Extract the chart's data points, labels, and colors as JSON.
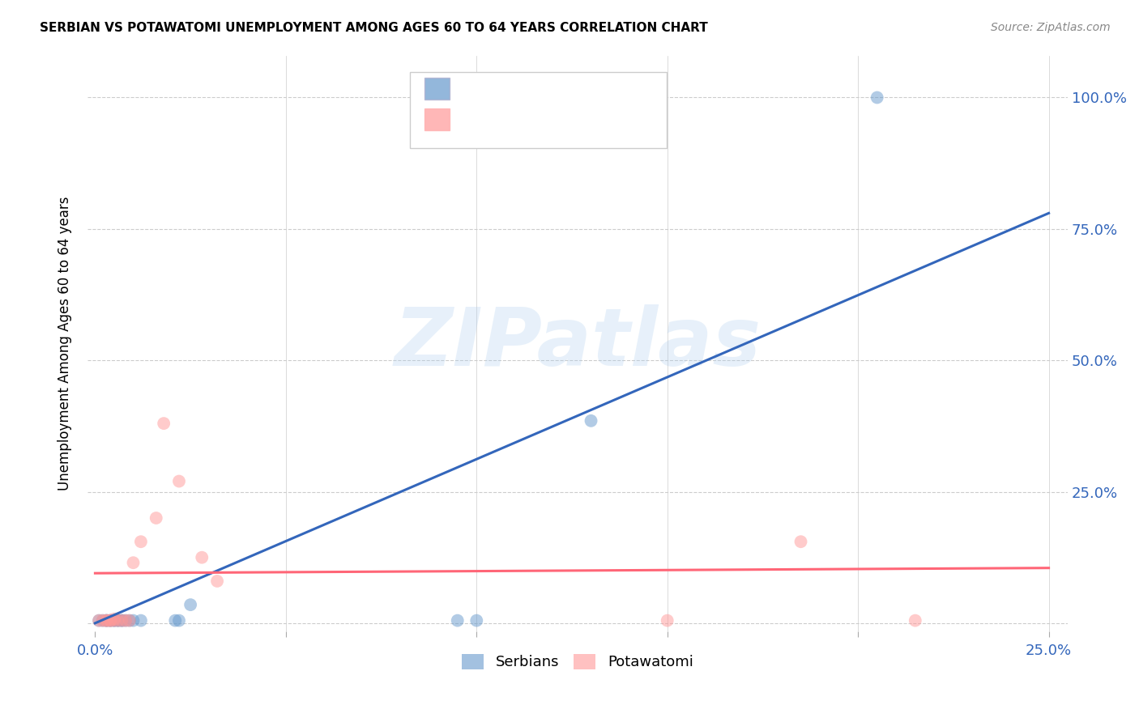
{
  "title": "SERBIAN VS POTAWATOMI UNEMPLOYMENT AMONG AGES 60 TO 64 YEARS CORRELATION CHART",
  "source": "Source: ZipAtlas.com",
  "ylabel": "Unemployment Among Ages 60 to 64 years",
  "xlim": [
    -0.002,
    0.255
  ],
  "ylim": [
    -0.015,
    1.08
  ],
  "xtick_vals": [
    0.0,
    0.05,
    0.1,
    0.15,
    0.2,
    0.25
  ],
  "xtick_labels": [
    "0.0%",
    "",
    "",
    "",
    "",
    "25.0%"
  ],
  "ytick_vals": [
    0.0,
    0.25,
    0.5,
    0.75,
    1.0
  ],
  "ytick_labels_right": [
    "",
    "25.0%",
    "50.0%",
    "75.0%",
    "100.0%"
  ],
  "serbian_color": "#6699CC",
  "potawatomi_color": "#FF9999",
  "serbian_line_color": "#3366BB",
  "potawatomi_line_color": "#FF6677",
  "watermark_text": "ZIPatlas",
  "serbian_x": [
    0.001,
    0.002,
    0.003,
    0.003,
    0.004,
    0.004,
    0.005,
    0.005,
    0.006,
    0.006,
    0.007,
    0.007,
    0.008,
    0.009,
    0.01,
    0.012,
    0.021,
    0.022,
    0.025,
    0.095,
    0.1,
    0.13,
    0.205
  ],
  "serbian_y": [
    0.005,
    0.005,
    0.005,
    0.005,
    0.005,
    0.005,
    0.005,
    0.005,
    0.005,
    0.005,
    0.005,
    0.005,
    0.005,
    0.005,
    0.005,
    0.005,
    0.005,
    0.005,
    0.035,
    0.005,
    0.005,
    0.385,
    1.0
  ],
  "potawatomi_x": [
    0.001,
    0.002,
    0.003,
    0.003,
    0.004,
    0.004,
    0.005,
    0.005,
    0.006,
    0.007,
    0.008,
    0.009,
    0.01,
    0.012,
    0.016,
    0.018,
    0.022,
    0.028,
    0.032,
    0.15,
    0.185,
    0.215
  ],
  "potawatomi_y": [
    0.005,
    0.005,
    0.005,
    0.005,
    0.005,
    0.005,
    0.005,
    0.008,
    0.005,
    0.005,
    0.005,
    0.005,
    0.115,
    0.155,
    0.2,
    0.38,
    0.27,
    0.125,
    0.08,
    0.005,
    0.155,
    0.005
  ],
  "blue_line_x": [
    0.0,
    0.25
  ],
  "blue_line_y": [
    0.0,
    0.78
  ],
  "pink_line_x": [
    0.0,
    0.25
  ],
  "pink_line_y": [
    0.095,
    0.105
  ]
}
